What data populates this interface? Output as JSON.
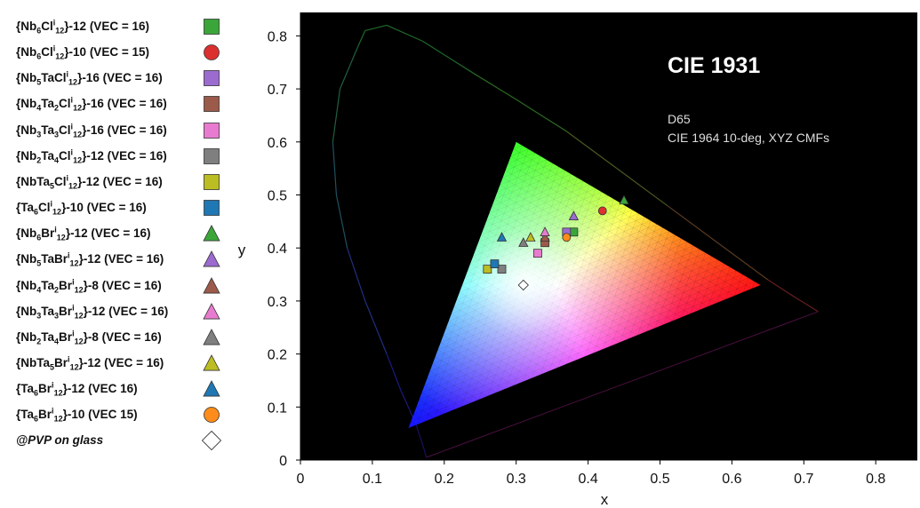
{
  "chart_data": {
    "type": "scatter",
    "title": "CIE 1931",
    "annotation_lines": [
      "D65",
      "CIE 1964 10-deg, XYZ CMFs"
    ],
    "xlabel": "x",
    "ylabel": "y",
    "xlim": [
      0,
      0.85
    ],
    "ylim": [
      0,
      0.85
    ],
    "xticks": [
      "0",
      "0.1",
      "0.2",
      "0.3",
      "0.4",
      "0.5",
      "0.6",
      "0.7",
      "0.8"
    ],
    "yticks": [
      "0",
      "0.1",
      "0.2",
      "0.3",
      "0.4",
      "0.5",
      "0.6",
      "0.7",
      "0.8"
    ],
    "background": "#000000",
    "gamut_triangle": [
      [
        0.64,
        0.33
      ],
      [
        0.3,
        0.6
      ],
      [
        0.15,
        0.06
      ]
    ],
    "spectral_locus": [
      [
        0.175,
        0.005
      ],
      [
        0.172,
        0.02
      ],
      [
        0.16,
        0.07
      ],
      [
        0.14,
        0.13
      ],
      [
        0.12,
        0.2
      ],
      [
        0.09,
        0.3
      ],
      [
        0.065,
        0.4
      ],
      [
        0.05,
        0.5
      ],
      [
        0.045,
        0.6
      ],
      [
        0.055,
        0.7
      ],
      [
        0.08,
        0.78
      ],
      [
        0.09,
        0.81
      ],
      [
        0.12,
        0.82
      ],
      [
        0.17,
        0.79
      ],
      [
        0.24,
        0.73
      ],
      [
        0.3,
        0.68
      ],
      [
        0.37,
        0.62
      ],
      [
        0.44,
        0.55
      ],
      [
        0.51,
        0.48
      ],
      [
        0.58,
        0.41
      ],
      [
        0.65,
        0.34
      ],
      [
        0.69,
        0.305
      ],
      [
        0.72,
        0.28
      ]
    ],
    "series": [
      {
        "name": "{Nb6Cl12}-12 (VEC = 16)",
        "parts": [
          [
            "{Nb",
            ""
          ],
          [
            "6",
            "sub"
          ],
          [
            "Cl",
            ""
          ],
          [
            "i",
            "sup"
          ],
          [
            "12",
            "sub"
          ],
          [
            "}-12 (VEC = 16)",
            ""
          ]
        ],
        "marker": "square",
        "color": "#3aa63a",
        "points": [
          [
            0.38,
            0.43
          ]
        ]
      },
      {
        "name": "{Nb6Cl12}-10 (VEC = 15)",
        "parts": [
          [
            "{Nb",
            ""
          ],
          [
            "6",
            "sub"
          ],
          [
            "Cl",
            ""
          ],
          [
            "i",
            "sup"
          ],
          [
            "12",
            "sub"
          ],
          [
            "}-10 (VEC = 15)",
            ""
          ]
        ],
        "marker": "circle",
        "color": "#dc2f2f",
        "points": [
          [
            0.42,
            0.47
          ]
        ]
      },
      {
        "name": "{Nb5TaCl12}-16 (VEC = 16)",
        "parts": [
          [
            "{Nb",
            ""
          ],
          [
            "5",
            "sub"
          ],
          [
            "TaCl",
            ""
          ],
          [
            "i",
            "sup"
          ],
          [
            "12",
            "sub"
          ],
          [
            "}-16 (VEC = 16)",
            ""
          ]
        ],
        "marker": "square",
        "color": "#9b6bd0",
        "points": [
          [
            0.37,
            0.43
          ]
        ]
      },
      {
        "name": "{Nb4Ta2Cl12}-16 (VEC = 16)",
        "parts": [
          [
            "{Nb",
            ""
          ],
          [
            "4",
            "sub"
          ],
          [
            "Ta",
            ""
          ],
          [
            "2",
            "sub"
          ],
          [
            "Cl",
            ""
          ],
          [
            "i",
            "sup"
          ],
          [
            "12",
            "sub"
          ],
          [
            "}-16 (VEC = 16)",
            ""
          ]
        ],
        "marker": "square",
        "color": "#9c5a4a",
        "points": [
          [
            0.34,
            0.41
          ]
        ]
      },
      {
        "name": "{Nb3Ta3Cl12}-16 (VEC = 16)",
        "parts": [
          [
            "{Nb",
            ""
          ],
          [
            "3",
            "sub"
          ],
          [
            "Ta",
            ""
          ],
          [
            "3",
            "sub"
          ],
          [
            "Cl",
            ""
          ],
          [
            "i",
            "sup"
          ],
          [
            "12",
            "sub"
          ],
          [
            "}-16 (VEC = 16)",
            ""
          ]
        ],
        "marker": "square",
        "color": "#e87bd0",
        "points": [
          [
            0.33,
            0.39
          ]
        ]
      },
      {
        "name": "{Nb2Ta4Cl12}-12 (VEC = 16)",
        "parts": [
          [
            "{Nb",
            ""
          ],
          [
            "2",
            "sub"
          ],
          [
            "Ta",
            ""
          ],
          [
            "4",
            "sub"
          ],
          [
            "Cl",
            ""
          ],
          [
            "i",
            "sup"
          ],
          [
            "12",
            "sub"
          ],
          [
            "}-12 (VEC = 16)",
            ""
          ]
        ],
        "marker": "square",
        "color": "#7f7f7f",
        "points": [
          [
            0.28,
            0.36
          ]
        ]
      },
      {
        "name": "{NbTa5Cl12}-12 (VEC = 16)",
        "parts": [
          [
            "{NbTa",
            ""
          ],
          [
            "5",
            "sub"
          ],
          [
            "Cl",
            ""
          ],
          [
            "i",
            "sup"
          ],
          [
            "12",
            "sub"
          ],
          [
            "}-12 (VEC = 16)",
            ""
          ]
        ],
        "marker": "square",
        "color": "#bcbd22",
        "points": [
          [
            0.26,
            0.36
          ]
        ]
      },
      {
        "name": "{Ta6Cl12}-10 (VEC = 16)",
        "parts": [
          [
            "{Ta",
            ""
          ],
          [
            "6",
            "sub"
          ],
          [
            "Cl",
            ""
          ],
          [
            "i",
            "sup"
          ],
          [
            "12",
            "sub"
          ],
          [
            "}-10 (VEC = 16)",
            ""
          ]
        ],
        "marker": "square",
        "color": "#1f77b4",
        "points": [
          [
            0.27,
            0.37
          ]
        ]
      },
      {
        "name": "{Nb6Br12}-12 (VEC = 16)",
        "parts": [
          [
            "{Nb",
            ""
          ],
          [
            "6",
            "sub"
          ],
          [
            "Br",
            ""
          ],
          [
            "i",
            "sup"
          ],
          [
            "12",
            "sub"
          ],
          [
            "}-12 (VEC = 16)",
            ""
          ]
        ],
        "marker": "triangle",
        "color": "#3aa63a",
        "points": [
          [
            0.45,
            0.49
          ]
        ]
      },
      {
        "name": "{Nb5TaBr12}-12 (VEC = 16)",
        "parts": [
          [
            "{Nb",
            ""
          ],
          [
            "5",
            "sub"
          ],
          [
            "TaBr",
            ""
          ],
          [
            "i",
            "sup"
          ],
          [
            "12",
            "sub"
          ],
          [
            "}-12 (VEC = 16)",
            ""
          ]
        ],
        "marker": "triangle",
        "color": "#9b6bd0",
        "points": [
          [
            0.38,
            0.46
          ]
        ]
      },
      {
        "name": "{Nb4Ta2Br12}-8 (VEC = 16)",
        "parts": [
          [
            "{Nb",
            ""
          ],
          [
            "4",
            "sub"
          ],
          [
            "Ta",
            ""
          ],
          [
            "2",
            "sub"
          ],
          [
            "Br",
            ""
          ],
          [
            "i",
            "sup"
          ],
          [
            "12",
            "sub"
          ],
          [
            "}-8 (VEC = 16)",
            ""
          ]
        ],
        "marker": "triangle",
        "color": "#9c5a4a",
        "points": [
          [
            0.34,
            0.42
          ]
        ]
      },
      {
        "name": "{Nb3Ta3Br12}-12 (VEC = 16)",
        "parts": [
          [
            "{Nb",
            ""
          ],
          [
            "3",
            "sub"
          ],
          [
            "Ta",
            ""
          ],
          [
            "3",
            "sub"
          ],
          [
            "Br",
            ""
          ],
          [
            "i",
            "sup"
          ],
          [
            "12",
            "sub"
          ],
          [
            "}-12 (VEC = 16)",
            ""
          ]
        ],
        "marker": "triangle",
        "color": "#e87bd0",
        "points": [
          [
            0.34,
            0.43
          ]
        ]
      },
      {
        "name": "{Nb2Ta4Br12}-8 (VEC = 16)",
        "parts": [
          [
            "{Nb",
            ""
          ],
          [
            "2",
            "sub"
          ],
          [
            "Ta",
            ""
          ],
          [
            "4",
            "sub"
          ],
          [
            "Br",
            ""
          ],
          [
            "i",
            "sup"
          ],
          [
            "12",
            "sub"
          ],
          [
            "}-8 (VEC = 16)",
            ""
          ]
        ],
        "marker": "triangle",
        "color": "#7f7f7f",
        "points": [
          [
            0.31,
            0.41
          ]
        ]
      },
      {
        "name": "{NbTa5Br12}-12 (VEC = 16)",
        "parts": [
          [
            "{NbTa",
            ""
          ],
          [
            "5",
            "sub"
          ],
          [
            "Br",
            ""
          ],
          [
            "i",
            "sup"
          ],
          [
            "12",
            "sub"
          ],
          [
            "}-12 (VEC = 16)",
            ""
          ]
        ],
        "marker": "triangle",
        "color": "#bcbd22",
        "points": [
          [
            0.32,
            0.42
          ]
        ]
      },
      {
        "name": "{Ta6Br12}-12 (VEC 16)",
        "parts": [
          [
            "{Ta",
            ""
          ],
          [
            "6",
            "sub"
          ],
          [
            "Br",
            ""
          ],
          [
            "i",
            "sup"
          ],
          [
            "12",
            "sub"
          ],
          [
            "}-12 (VEC 16)",
            ""
          ]
        ],
        "marker": "triangle",
        "color": "#1f77b4",
        "points": [
          [
            0.28,
            0.42
          ]
        ]
      },
      {
        "name": "{Ta6Br12}-10 (VEC 15)",
        "parts": [
          [
            "{Ta",
            ""
          ],
          [
            "6",
            "sub"
          ],
          [
            "Br",
            ""
          ],
          [
            "i",
            "sup"
          ],
          [
            "12",
            "sub"
          ],
          [
            "}-10 (VEC 15)",
            ""
          ]
        ],
        "marker": "circle",
        "color": "#ff8c1a",
        "points": [
          [
            0.37,
            0.42
          ]
        ]
      },
      {
        "name": "@PVP on glass",
        "parts": [
          [
            "@PVP on glass",
            ""
          ]
        ],
        "italic": true,
        "marker": "diamond",
        "color": "#ffffff",
        "points": [
          [
            0.31,
            0.33
          ]
        ]
      }
    ]
  }
}
